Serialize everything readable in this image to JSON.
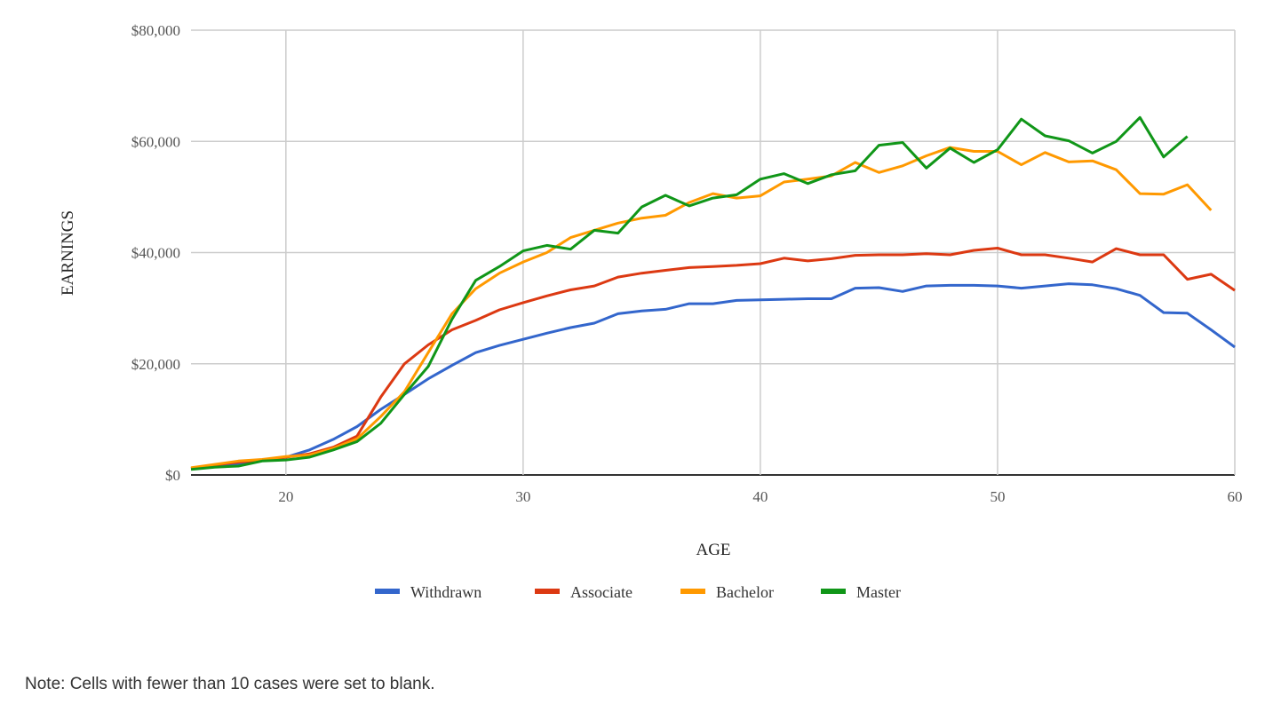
{
  "chart_data": {
    "type": "line",
    "title": "",
    "xlabel": "AGE",
    "ylabel": "EARNINGS",
    "xlim": [
      16,
      60
    ],
    "ylim": [
      0,
      80000
    ],
    "x_ticks": [
      20,
      30,
      40,
      50,
      60
    ],
    "x_tick_labels": [
      "20",
      "30",
      "40",
      "50",
      "60"
    ],
    "y_ticks": [
      0,
      20000,
      40000,
      60000,
      80000
    ],
    "y_tick_labels": [
      "$0",
      "$20,000",
      "$40,000",
      "$60,000",
      "$80,000"
    ],
    "grid": true,
    "legend_position": "bottom",
    "x": [
      16,
      17,
      18,
      19,
      20,
      21,
      22,
      23,
      24,
      25,
      26,
      27,
      28,
      29,
      30,
      31,
      32,
      33,
      34,
      35,
      36,
      37,
      38,
      39,
      40,
      41,
      42,
      43,
      44,
      45,
      46,
      47,
      48,
      49,
      50,
      51,
      52,
      53,
      54,
      55,
      56,
      57,
      58,
      59,
      60
    ],
    "series": [
      {
        "name": "Withdrawn",
        "color": "#3366cc",
        "values": [
          1200,
          1600,
          2000,
          2600,
          3200,
          4500,
          6400,
          8700,
          11800,
          14500,
          17300,
          19700,
          22000,
          23300,
          24400,
          25500,
          26500,
          27300,
          29000,
          29500,
          29800,
          30800,
          30800,
          31400,
          31500,
          31600,
          31700,
          31700,
          33600,
          33700,
          33000,
          34000,
          34100,
          34100,
          34000,
          33600,
          34000,
          34400,
          34200,
          33500,
          32300,
          29200,
          29100,
          26100,
          23000
        ]
      },
      {
        "name": "Associate",
        "color": "#dc3912",
        "values": [
          1200,
          1800,
          2300,
          2700,
          3200,
          3800,
          5000,
          7000,
          14000,
          20000,
          23400,
          26100,
          27800,
          29700,
          31000,
          32200,
          33300,
          34000,
          35600,
          36300,
          36800,
          37300,
          37500,
          37700,
          38000,
          39000,
          38500,
          38900,
          39500,
          39600,
          39600,
          39800,
          39600,
          40400,
          40800,
          39600,
          39600,
          39000,
          38300,
          40700,
          39600,
          39600,
          35200,
          36100,
          33200
        ]
      },
      {
        "name": "Bachelor",
        "color": "#ff9900",
        "values": [
          1300,
          1900,
          2500,
          2800,
          3300,
          3600,
          4800,
          6500,
          10500,
          15000,
          22000,
          29000,
          33500,
          36300,
          38300,
          40000,
          42700,
          44000,
          45300,
          46200,
          46700,
          49000,
          50600,
          49800,
          50200,
          52700,
          53200,
          53800,
          56200,
          54400,
          55600,
          57400,
          58900,
          58200,
          58200,
          55800,
          58000,
          56300,
          56500,
          54900,
          50600,
          50500,
          52200,
          47600,
          null
        ]
      },
      {
        "name": "Master",
        "color": "#109618",
        "values": [
          1000,
          1400,
          1600,
          2500,
          2700,
          3200,
          4500,
          6000,
          9300,
          14500,
          19500,
          28000,
          35000,
          37500,
          40300,
          41300,
          40600,
          44000,
          43500,
          48200,
          50300,
          48400,
          49800,
          50400,
          53200,
          54200,
          52400,
          54000,
          54700,
          59300,
          59800,
          55200,
          58800,
          56200,
          58500,
          64000,
          61000,
          60100,
          57900,
          60000,
          64300,
          57200,
          60900,
          null,
          null
        ]
      }
    ]
  },
  "note": "Note: Cells with fewer than 10 cases were set to blank."
}
